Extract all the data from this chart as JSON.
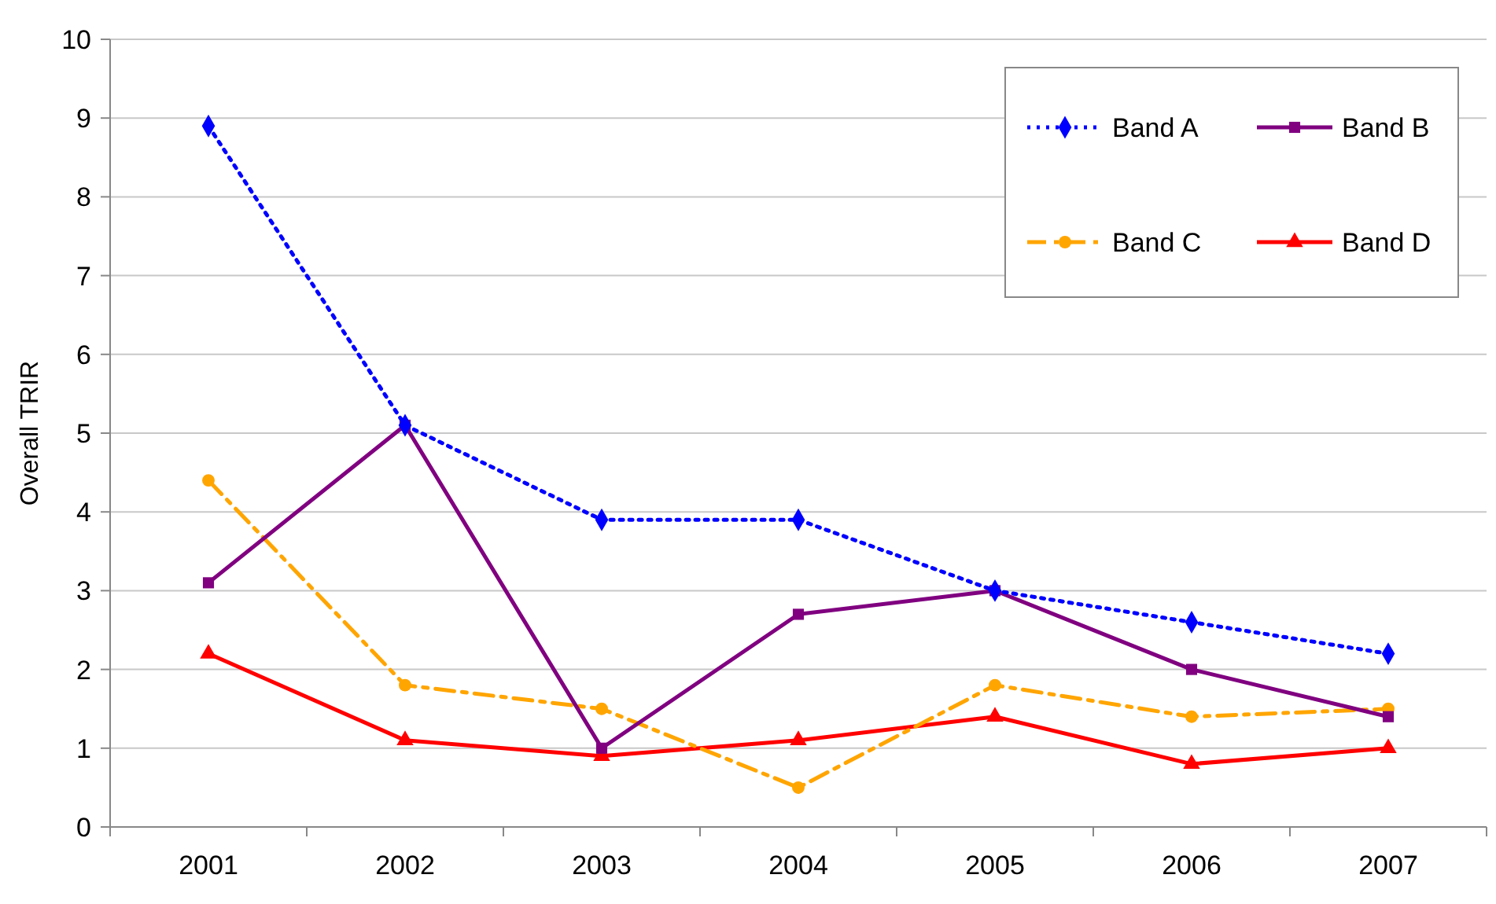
{
  "chart_data": {
    "type": "line",
    "ylabel": "Overall TRIR",
    "categories": [
      "2001",
      "2002",
      "2003",
      "2004",
      "2005",
      "2006",
      "2007"
    ],
    "ylim": [
      0,
      10
    ],
    "yticks": [
      0,
      1,
      2,
      3,
      4,
      5,
      6,
      7,
      8,
      9,
      10
    ],
    "grid": "y",
    "legend": "top right",
    "series": [
      {
        "name": "Band A",
        "color": "#0000ff",
        "marker": "diamond",
        "line_style": "dotted",
        "values": [
          8.9,
          5.1,
          3.9,
          3.9,
          3.0,
          2.6,
          2.2
        ]
      },
      {
        "name": "Band B",
        "color": "#800080",
        "marker": "square",
        "line_style": "solid",
        "values": [
          3.1,
          5.1,
          1.0,
          2.7,
          3.0,
          2.0,
          1.4
        ]
      },
      {
        "name": "Band C",
        "color": "#ffa500",
        "marker": "circle",
        "line_style": "dashed",
        "values": [
          4.4,
          1.8,
          1.5,
          0.5,
          1.8,
          1.4,
          1.5
        ]
      },
      {
        "name": "Band D",
        "color": "#ff0000",
        "marker": "triangle",
        "line_style": "solid",
        "values": [
          2.2,
          1.1,
          0.9,
          1.1,
          1.4,
          0.8,
          1.0
        ]
      }
    ]
  }
}
